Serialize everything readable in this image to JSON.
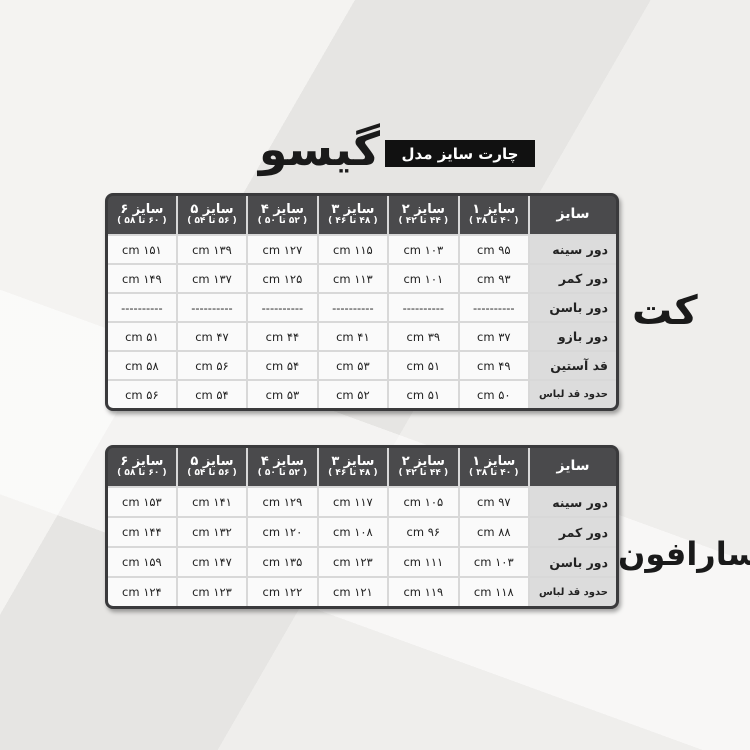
{
  "header": {
    "brand": "گیسو",
    "subtitle": "چارت سایز مدل"
  },
  "tables": [
    {
      "section_label": "کت",
      "corner": "سایز",
      "columns": [
        {
          "size": "سایز ۱",
          "range": "( ۴۰ تا ۳۸ )"
        },
        {
          "size": "سایز ۲",
          "range": "( ۴۴ تا ۴۲ )"
        },
        {
          "size": "سایز ۳",
          "range": "( ۴۸ تا ۴۶ )"
        },
        {
          "size": "سایز ۴",
          "range": "( ۵۲ تا ۵۰ )"
        },
        {
          "size": "سایز ۵",
          "range": "( ۵۶ تا ۵۴ )"
        },
        {
          "size": "سایز ۶",
          "range": "( ۶۰ تا ۵۸ )"
        }
      ],
      "rows": [
        {
          "label": "دور سینه",
          "values": [
            "۹۵ cm",
            "۱۰۳ cm",
            "۱۱۵ cm",
            "۱۲۷ cm",
            "۱۳۹ cm",
            "۱۵۱ cm"
          ]
        },
        {
          "label": "دور کمر",
          "values": [
            "۹۳ cm",
            "۱۰۱ cm",
            "۱۱۳ cm",
            "۱۲۵ cm",
            "۱۳۷ cm",
            "۱۴۹ cm"
          ]
        },
        {
          "label": "دور باسن",
          "values": [
            "----------",
            "----------",
            "----------",
            "----------",
            "----------",
            "----------"
          ]
        },
        {
          "label": "دور بازو",
          "values": [
            "۳۷ cm",
            "۳۹ cm",
            "۴۱ cm",
            "۴۴ cm",
            "۴۷ cm",
            "۵۱ cm"
          ]
        },
        {
          "label": "قد آستین",
          "values": [
            "۴۹ cm",
            "۵۱ cm",
            "۵۳ cm",
            "۵۴ cm",
            "۵۶ cm",
            "۵۸ cm"
          ]
        },
        {
          "label": "حدود قد لباس",
          "values": [
            "۵۰ cm",
            "۵۱ cm",
            "۵۲ cm",
            "۵۳ cm",
            "۵۴ cm",
            "۵۶ cm"
          ]
        }
      ]
    },
    {
      "section_label": "سارافون",
      "corner": "سایز",
      "columns": [
        {
          "size": "سایز ۱",
          "range": "( ۴۰ تا ۳۸ )"
        },
        {
          "size": "سایز ۲",
          "range": "( ۴۴ تا ۴۲ )"
        },
        {
          "size": "سایز ۳",
          "range": "( ۴۸ تا ۴۶ )"
        },
        {
          "size": "سایز ۴",
          "range": "( ۵۲ تا ۵۰ )"
        },
        {
          "size": "سایز ۵",
          "range": "( ۵۶ تا ۵۴ )"
        },
        {
          "size": "سایز ۶",
          "range": "( ۶۰ تا ۵۸ )"
        }
      ],
      "rows": [
        {
          "label": "دور سینه",
          "values": [
            "۹۷ cm",
            "۱۰۵ cm",
            "۱۱۷ cm",
            "۱۲۹ cm",
            "۱۴۱ cm",
            "۱۵۳ cm"
          ]
        },
        {
          "label": "دور کمر",
          "values": [
            "۸۸ cm",
            "۹۶ cm",
            "۱۰۸ cm",
            "۱۲۰ cm",
            "۱۳۲ cm",
            "۱۴۴ cm"
          ]
        },
        {
          "label": "دور باسن",
          "values": [
            "۱۰۳ cm",
            "۱۱۱ cm",
            "۱۲۳ cm",
            "۱۳۵ cm",
            "۱۴۷ cm",
            "۱۵۹ cm"
          ]
        },
        {
          "label": "حدود قد لباس",
          "values": [
            "۱۱۸ cm",
            "۱۱۹ cm",
            "۱۲۱ cm",
            "۱۲۲ cm",
            "۱۲۳ cm",
            "۱۲۴ cm"
          ]
        }
      ]
    }
  ]
}
